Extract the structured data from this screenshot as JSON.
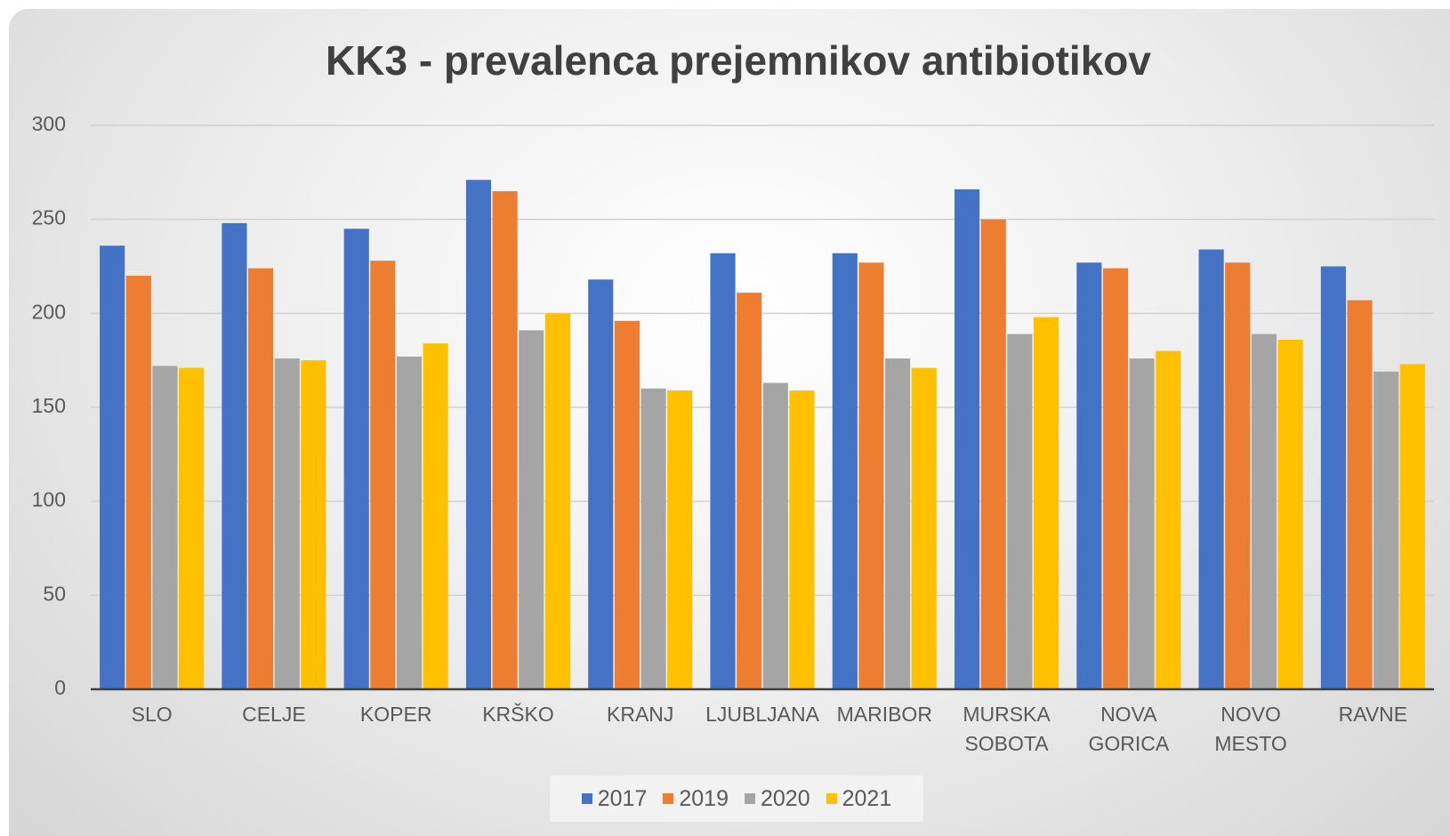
{
  "chart_data": {
    "type": "bar",
    "title": "KK3 - prevalenca prejemnikov antibiotikov",
    "categories": [
      "SLO",
      "CELJE",
      "KOPER",
      "KRŠKO",
      "KRANJ",
      "LJUBLJANA",
      "MARIBOR",
      "MURSKA SOBOTA",
      "NOVA GORICA",
      "NOVO MESTO",
      "RAVNE"
    ],
    "series": [
      {
        "name": "2017",
        "color": "#4472c4",
        "values": [
          236,
          248,
          245,
          271,
          218,
          232,
          232,
          266,
          227,
          234,
          225
        ]
      },
      {
        "name": "2019",
        "color": "#ed7d31",
        "values": [
          220,
          224,
          228,
          265,
          196,
          211,
          227,
          250,
          224,
          227,
          207
        ]
      },
      {
        "name": "2020",
        "color": "#a5a5a5",
        "values": [
          172,
          176,
          177,
          191,
          160,
          163,
          176,
          189,
          176,
          189,
          169
        ]
      },
      {
        "name": "2021",
        "color": "#ffc000",
        "values": [
          171,
          175,
          184,
          200,
          159,
          159,
          171,
          198,
          180,
          186,
          173
        ]
      }
    ],
    "ylim": [
      0,
      300
    ],
    "yticks": [
      0,
      50,
      100,
      150,
      200,
      250,
      300
    ],
    "grid": true,
    "legend": "bottom"
  }
}
